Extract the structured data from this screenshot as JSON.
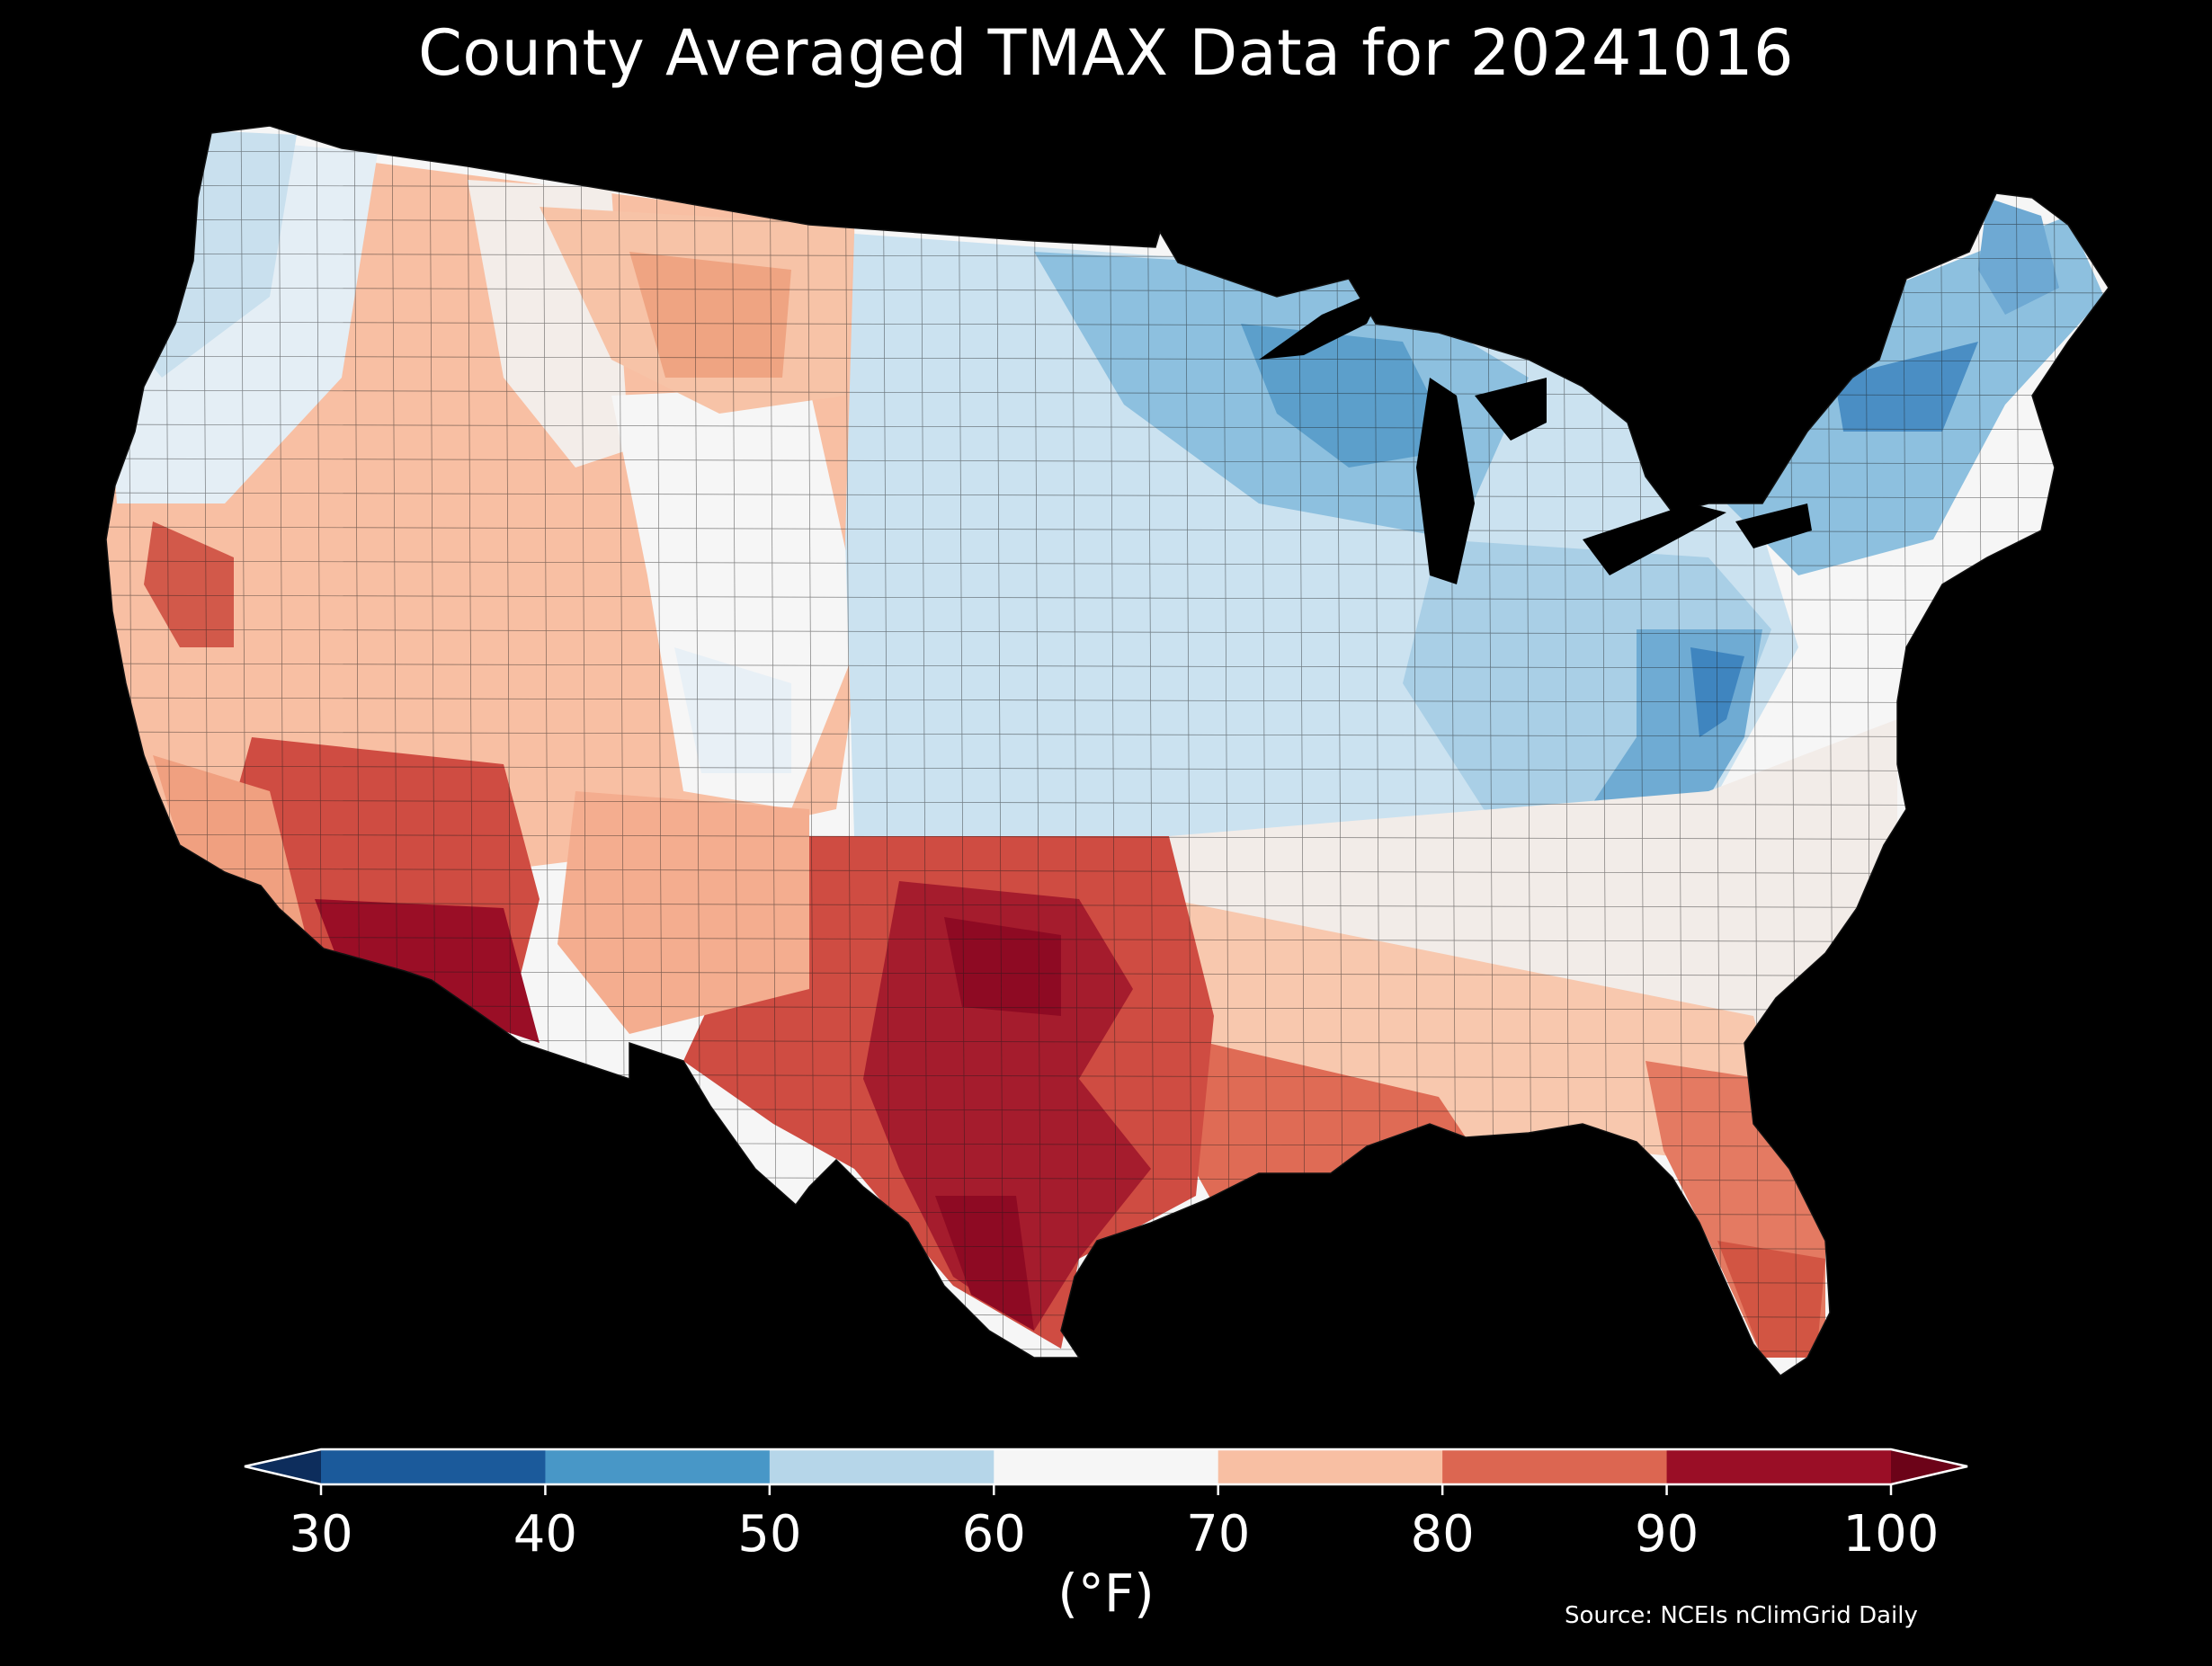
{
  "title": "County Averaged TMAX Data for 20241016",
  "map": {
    "region": "Contiguous United States",
    "unit_level": "county",
    "variable": "TMAX",
    "background": "#000000",
    "hotspots": [
      "Texas",
      "Arizona",
      "California Central Valley",
      "Southeast"
    ],
    "coldspots": [
      "Northern Michigan / Wisconsin",
      "New England",
      "Appalachians (West Virginia)"
    ]
  },
  "colorbar": {
    "ticks": [
      "30",
      "40",
      "50",
      "60",
      "70",
      "80",
      "90",
      "100"
    ],
    "bins": [
      {
        "range": [
          30,
          40
        ],
        "color": "#1b5a9b"
      },
      {
        "range": [
          40,
          50
        ],
        "color": "#4897c7"
      },
      {
        "range": [
          50,
          60
        ],
        "color": "#b6d6e9"
      },
      {
        "range": [
          60,
          70
        ],
        "color": "#f6f6f6"
      },
      {
        "range": [
          70,
          80
        ],
        "color": "#f8bfa3"
      },
      {
        "range": [
          80,
          90
        ],
        "color": "#dc6651"
      },
      {
        "range": [
          90,
          100
        ],
        "color": "#9a0e26"
      }
    ],
    "under_color": "#0d2d5c",
    "over_color": "#6c0318",
    "unit_label": "(°F)"
  },
  "source": "Source: NCEIs nClimGrid Daily"
}
